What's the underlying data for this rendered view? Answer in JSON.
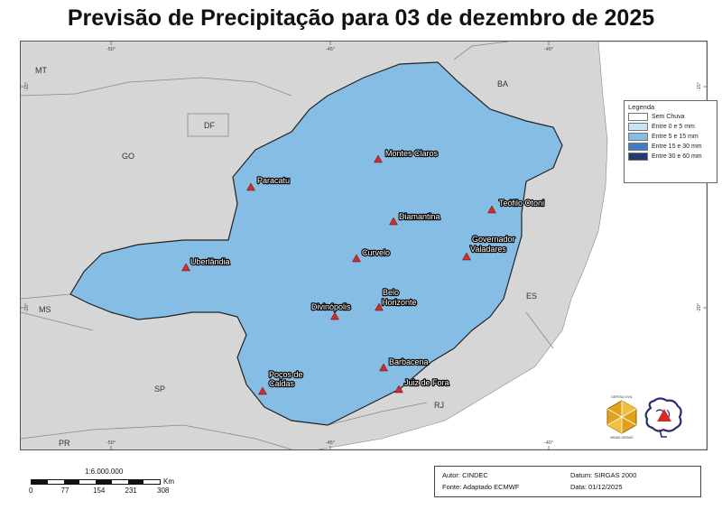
{
  "title": "Previsão de Precipitação para 03 de dezembro de 2025",
  "legend": {
    "title": "Legenda",
    "items": [
      {
        "label": "Sem Chuva",
        "color": "#ffffff"
      },
      {
        "label": "Entre 0 e 5 mm",
        "color": "#c6e6f6"
      },
      {
        "label": "Entre 5 e 15 mm",
        "color": "#86bde4"
      },
      {
        "label": "Entre 15 e 30 mm",
        "color": "#3f7cc3"
      },
      {
        "label": "Entre 30 e 60 mm",
        "color": "#233a6e"
      }
    ]
  },
  "cities": [
    {
      "name": "Montes Claros",
      "marker_color": "#d42a2a"
    },
    {
      "name": "Paracatu",
      "marker_color": "#d42a2a"
    },
    {
      "name": "Diamantina",
      "marker_color": "#d42a2a"
    },
    {
      "name": "Teófilo Otoni",
      "marker_color": "#d42a2a"
    },
    {
      "name": "Curvelo",
      "marker_color": "#d42a2a"
    },
    {
      "name": "Governador",
      "marker_color": "#d42a2a"
    },
    {
      "name": "Valadares",
      "marker_color": "#d42a2a"
    },
    {
      "name": "Uberlândia",
      "marker_color": "#d42a2a"
    },
    {
      "name": "Belo",
      "marker_color": "#d42a2a"
    },
    {
      "name": "Horizonte",
      "marker_color": "#d42a2a"
    },
    {
      "name": "Divinópolis",
      "marker_color": "#d42a2a"
    },
    {
      "name": "Barbacena",
      "marker_color": "#d42a2a"
    },
    {
      "name": "Poços de",
      "marker_color": "#d42a2a"
    },
    {
      "name": "Caldas",
      "marker_color": "#d42a2a"
    },
    {
      "name": "Juiz de Fora",
      "marker_color": "#d42a2a"
    }
  ],
  "states": [
    "MT",
    "DF",
    "GO",
    "BA",
    "MS",
    "ES",
    "SP",
    "RJ",
    "PR"
  ],
  "grid_labels": {
    "top": [
      "-50°",
      "-45°",
      "-40°"
    ],
    "bottom": [
      "-50°",
      "-45°",
      "-40°"
    ],
    "left": [
      "-15°",
      "-20°"
    ],
    "right": [
      "-15°",
      "-20°"
    ]
  },
  "scale": {
    "ratio": "1:6.000.000",
    "ticks": [
      "0",
      "77",
      "154",
      "231",
      "308"
    ],
    "unit": "Km"
  },
  "credits": {
    "author": "Autor: CINDEC",
    "source": "Fonte: Adaptado ECMWF",
    "datum": "Datum: SIRGAS 2000",
    "date": "Data: 01/12/2025"
  },
  "colors": {
    "outside": "#d6d6d6",
    "ocean": "#ffffff",
    "boundary": "#222222",
    "marker": "#d42a2a"
  },
  "logos": {
    "left_logo_text": "DEFESA CIVIL",
    "left_logo_bottom": "MINAS GERAIS"
  }
}
